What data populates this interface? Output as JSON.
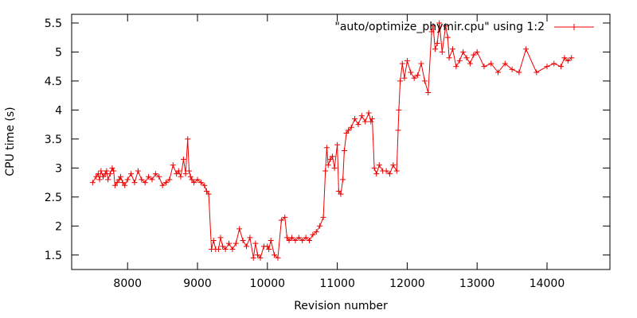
{
  "chart_data": {
    "type": "line",
    "title": "",
    "xlabel": "Revision number",
    "ylabel": "CPU time (s)",
    "xlim": [
      7200,
      14900
    ],
    "ylim": [
      1.25,
      5.65
    ],
    "x_ticks": [
      8000,
      9000,
      10000,
      11000,
      12000,
      13000,
      14000
    ],
    "x_tick_labels": [
      "8000",
      "9000",
      "10000",
      "11000",
      "12000",
      "13000",
      "14000"
    ],
    "y_ticks": [
      1.5,
      2,
      2.5,
      3,
      3.5,
      4,
      4.5,
      5,
      5.5
    ],
    "y_tick_labels": [
      "1.5",
      "2",
      "2.5",
      "3",
      "3.5",
      "4",
      "4.5",
      "5",
      "5.5"
    ],
    "grid": false,
    "legend_position": "top-right",
    "series": [
      {
        "name": "\"auto/optimize_phymir.cpu\" using 1:2",
        "color": "#ee0000",
        "marker": "+",
        "x": [
          7500,
          7550,
          7580,
          7600,
          7620,
          7650,
          7680,
          7700,
          7720,
          7750,
          7780,
          7800,
          7820,
          7850,
          7880,
          7900,
          7930,
          7960,
          8000,
          8050,
          8100,
          8150,
          8200,
          8250,
          8300,
          8350,
          8400,
          8450,
          8500,
          8550,
          8600,
          8650,
          8700,
          8730,
          8760,
          8800,
          8830,
          8860,
          8880,
          8900,
          8920,
          8950,
          9000,
          9050,
          9100,
          9130,
          9160,
          9200,
          9230,
          9260,
          9300,
          9330,
          9360,
          9400,
          9450,
          9500,
          9550,
          9600,
          9650,
          9700,
          9750,
          9800,
          9830,
          9860,
          9900,
          9950,
          10000,
          10020,
          10050,
          10100,
          10150,
          10200,
          10250,
          10280,
          10310,
          10350,
          10400,
          10450,
          10500,
          10550,
          10600,
          10650,
          10700,
          10750,
          10800,
          10830,
          10850,
          10870,
          10900,
          10930,
          10960,
          11000,
          11020,
          11050,
          11080,
          11100,
          11130,
          11160,
          11200,
          11250,
          11300,
          11350,
          11400,
          11450,
          11480,
          11500,
          11530,
          11560,
          11600,
          11650,
          11700,
          11750,
          11800,
          11850,
          11870,
          11880,
          11900,
          11930,
          11960,
          12000,
          12050,
          12100,
          12150,
          12200,
          12250,
          12300,
          12350,
          12370,
          12400,
          12430,
          12460,
          12500,
          12550,
          12580,
          12600,
          12650,
          12700,
          12750,
          12800,
          12850,
          12900,
          12950,
          13000,
          13100,
          13200,
          13300,
          13400,
          13500,
          13600,
          13700,
          13850,
          14000,
          14100,
          14200,
          14250,
          14300,
          14350
        ],
        "y": [
          2.75,
          2.85,
          2.9,
          2.8,
          2.95,
          2.85,
          2.9,
          2.95,
          2.8,
          2.9,
          3.0,
          2.95,
          2.7,
          2.75,
          2.8,
          2.85,
          2.75,
          2.7,
          2.8,
          2.9,
          2.75,
          2.95,
          2.8,
          2.75,
          2.85,
          2.8,
          2.9,
          2.85,
          2.7,
          2.75,
          2.8,
          3.05,
          2.9,
          2.95,
          2.85,
          3.15,
          2.9,
          3.5,
          2.95,
          2.85,
          2.8,
          2.75,
          2.8,
          2.75,
          2.7,
          2.6,
          2.55,
          1.6,
          1.75,
          1.6,
          1.6,
          1.8,
          1.65,
          1.6,
          1.7,
          1.6,
          1.7,
          1.95,
          1.75,
          1.65,
          1.8,
          1.45,
          1.7,
          1.5,
          1.45,
          1.65,
          1.65,
          1.6,
          1.75,
          1.5,
          1.45,
          2.1,
          2.15,
          1.8,
          1.75,
          1.8,
          1.75,
          1.8,
          1.75,
          1.8,
          1.75,
          1.85,
          1.9,
          2.0,
          2.15,
          2.95,
          3.35,
          3.05,
          3.15,
          3.2,
          3.0,
          3.4,
          2.6,
          2.55,
          2.8,
          3.3,
          3.6,
          3.65,
          3.7,
          3.85,
          3.75,
          3.9,
          3.8,
          3.95,
          3.8,
          3.85,
          3.0,
          2.9,
          3.05,
          2.95,
          2.95,
          2.9,
          3.05,
          2.95,
          3.65,
          4.0,
          4.5,
          4.8,
          4.55,
          4.85,
          4.65,
          4.55,
          4.6,
          4.8,
          4.5,
          4.3,
          5.35,
          5.45,
          5.05,
          5.15,
          5.5,
          5.0,
          5.45,
          5.25,
          4.9,
          5.05,
          4.75,
          4.85,
          5.0,
          4.9,
          4.8,
          4.95,
          5.0,
          4.75,
          4.8,
          4.65,
          4.8,
          4.7,
          4.65,
          5.05,
          4.65,
          4.75,
          4.8,
          4.75,
          4.9,
          4.85,
          4.9
        ]
      }
    ]
  }
}
